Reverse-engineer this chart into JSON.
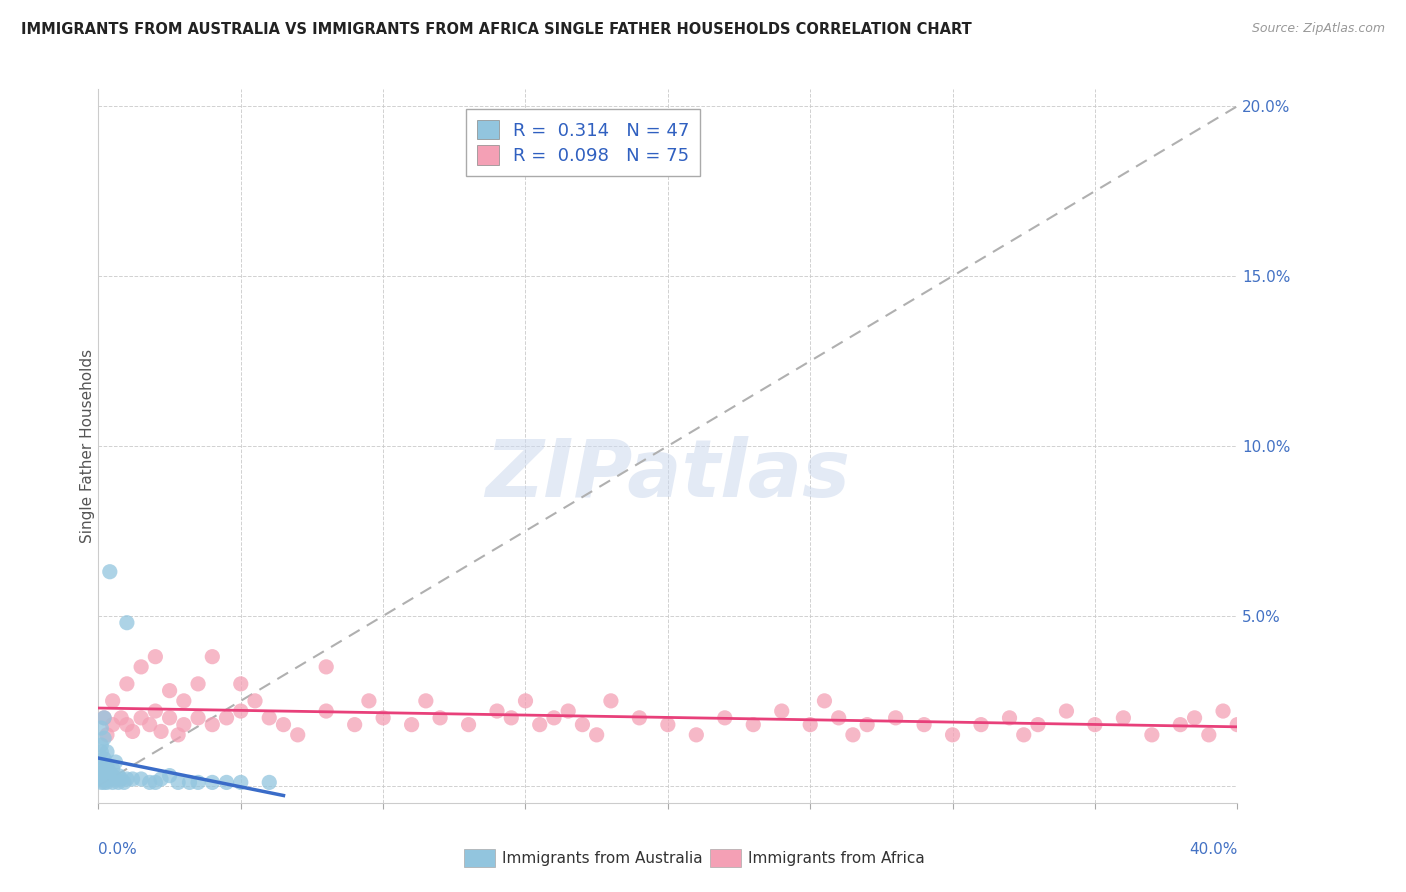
{
  "title": "IMMIGRANTS FROM AUSTRALIA VS IMMIGRANTS FROM AFRICA SINGLE FATHER HOUSEHOLDS CORRELATION CHART",
  "source": "Source: ZipAtlas.com",
  "ylabel": "Single Father Households",
  "xlim": [
    0.0,
    0.4
  ],
  "ylim": [
    -0.005,
    0.205
  ],
  "ytick_vals": [
    0.0,
    0.05,
    0.1,
    0.15,
    0.2
  ],
  "ytick_labels": [
    "",
    "5.0%",
    "10.0%",
    "15.0%",
    "20.0%"
  ],
  "legend_r1_val": "0.314",
  "legend_n1_val": "47",
  "legend_r2_val": "0.098",
  "legend_n2_val": "75",
  "color_australia": "#92c5de",
  "color_africa": "#f4a0b5",
  "color_aus_line": "#3a6cc8",
  "color_afr_line": "#e8407a",
  "color_dash": "#b0b0b0",
  "watermark": "ZIPatlas",
  "aus_x": [
    0.001,
    0.001,
    0.001,
    0.001,
    0.001,
    0.001,
    0.001,
    0.001,
    0.002,
    0.002,
    0.002,
    0.002,
    0.002,
    0.002,
    0.002,
    0.003,
    0.003,
    0.003,
    0.003,
    0.003,
    0.004,
    0.004,
    0.004,
    0.005,
    0.005,
    0.005,
    0.006,
    0.006,
    0.007,
    0.007,
    0.008,
    0.009,
    0.01,
    0.01,
    0.012,
    0.015,
    0.018,
    0.02,
    0.022,
    0.025,
    0.028,
    0.032,
    0.035,
    0.04,
    0.045,
    0.05,
    0.06
  ],
  "aus_y": [
    0.001,
    0.002,
    0.003,
    0.005,
    0.006,
    0.01,
    0.012,
    0.017,
    0.001,
    0.002,
    0.003,
    0.004,
    0.008,
    0.014,
    0.02,
    0.001,
    0.002,
    0.005,
    0.006,
    0.01,
    0.002,
    0.004,
    0.063,
    0.001,
    0.003,
    0.005,
    0.002,
    0.007,
    0.001,
    0.003,
    0.002,
    0.001,
    0.002,
    0.048,
    0.002,
    0.002,
    0.001,
    0.001,
    0.002,
    0.003,
    0.001,
    0.001,
    0.001,
    0.001,
    0.001,
    0.001,
    0.001
  ],
  "afr_x": [
    0.002,
    0.003,
    0.005,
    0.005,
    0.008,
    0.01,
    0.01,
    0.012,
    0.015,
    0.015,
    0.018,
    0.02,
    0.02,
    0.022,
    0.025,
    0.025,
    0.028,
    0.03,
    0.03,
    0.035,
    0.035,
    0.04,
    0.04,
    0.045,
    0.05,
    0.05,
    0.055,
    0.06,
    0.065,
    0.07,
    0.08,
    0.08,
    0.09,
    0.095,
    0.1,
    0.11,
    0.115,
    0.12,
    0.13,
    0.14,
    0.145,
    0.15,
    0.155,
    0.16,
    0.165,
    0.17,
    0.175,
    0.18,
    0.19,
    0.2,
    0.21,
    0.22,
    0.23,
    0.24,
    0.25,
    0.255,
    0.26,
    0.265,
    0.27,
    0.28,
    0.29,
    0.3,
    0.31,
    0.32,
    0.325,
    0.33,
    0.34,
    0.35,
    0.36,
    0.37,
    0.38,
    0.385,
    0.39,
    0.395,
    0.4
  ],
  "afr_y": [
    0.02,
    0.015,
    0.018,
    0.025,
    0.02,
    0.018,
    0.03,
    0.016,
    0.02,
    0.035,
    0.018,
    0.022,
    0.038,
    0.016,
    0.02,
    0.028,
    0.015,
    0.018,
    0.025,
    0.02,
    0.03,
    0.018,
    0.038,
    0.02,
    0.022,
    0.03,
    0.025,
    0.02,
    0.018,
    0.015,
    0.022,
    0.035,
    0.018,
    0.025,
    0.02,
    0.018,
    0.025,
    0.02,
    0.018,
    0.022,
    0.02,
    0.025,
    0.018,
    0.02,
    0.022,
    0.018,
    0.015,
    0.025,
    0.02,
    0.018,
    0.015,
    0.02,
    0.018,
    0.022,
    0.018,
    0.025,
    0.02,
    0.015,
    0.018,
    0.02,
    0.018,
    0.015,
    0.018,
    0.02,
    0.015,
    0.018,
    0.022,
    0.018,
    0.02,
    0.015,
    0.018,
    0.02,
    0.015,
    0.022,
    0.018
  ]
}
